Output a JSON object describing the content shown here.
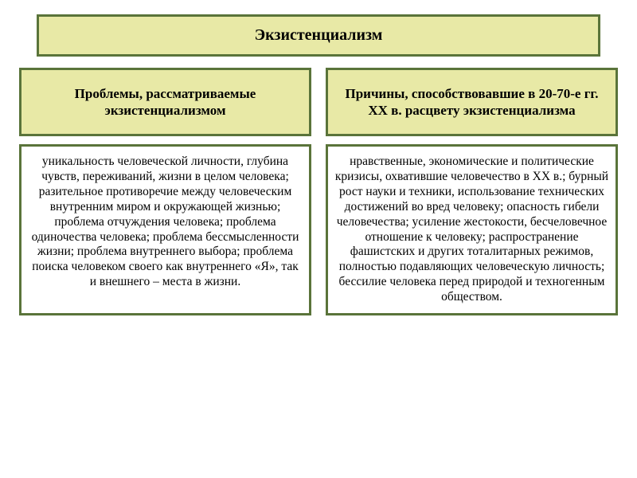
{
  "colors": {
    "box_bg": "#e8e9a6",
    "box_border": "#5a743a",
    "content_bg": "#ffffff",
    "content_border": "#5a743a",
    "text": "#000000"
  },
  "title": "Экзистенциализм",
  "left": {
    "heading": "Проблемы, рассматриваемые экзистенциализмом",
    "body": "уникальность человеческой личности, глубина чувств, переживаний, жизни в целом человека;\nразительное противоречие между человеческим внутренним миром и окружающей жизнью;\nпроблема отчуждения человека;\nпроблема одиночества человека;\nпроблема бессмысленности жизни;\nпроблема внутреннего выбора;\nпроблема поиска человеком своего как внутреннего «Я», так и внешнего – места в жизни."
  },
  "right": {
    "heading": "Причины, способствовавшие в 20-70-е гг. XX в. расцвету экзистенциализма",
    "body": "нравственные, экономические и политические кризисы, охватившие человечество в XX в.;\nбурный рост науки и техники, использование технических достижений во вред человеку;\nопасность гибели человечества;\nусиление жестокости, бесчеловечное отношение к человеку;\nраспространение фашистских и других тоталитарных режимов, полностью подавляющих человеческую личность;\nбессилие человека перед природой и техногенным обществом."
  }
}
